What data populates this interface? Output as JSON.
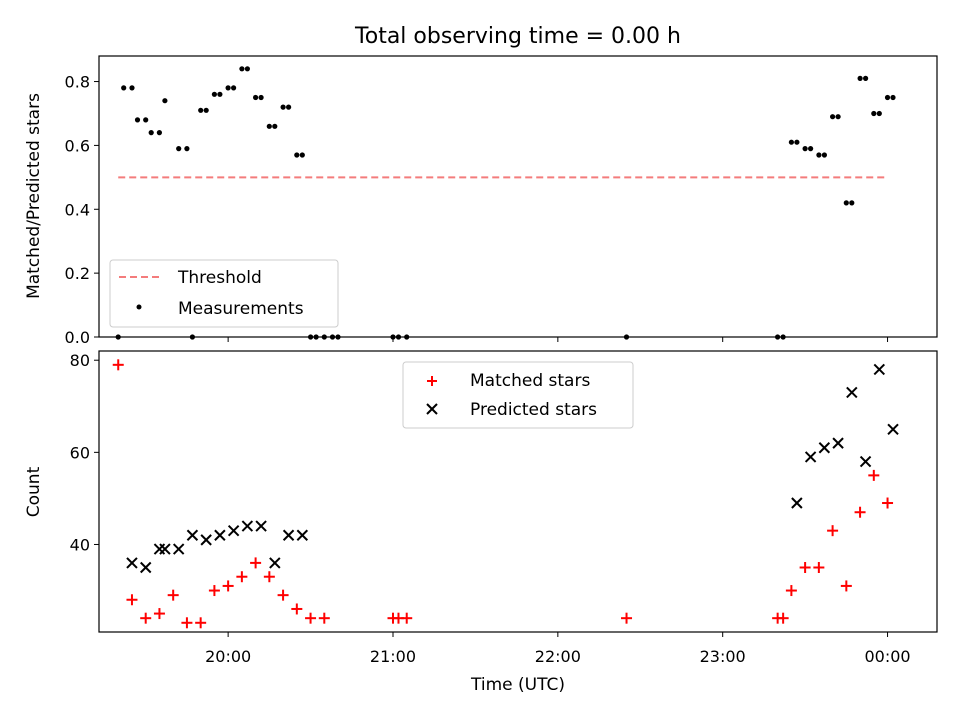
{
  "chart_data": [
    {
      "type": "scatter",
      "title": "Total observing time = 0.00 h",
      "xlabel": "",
      "ylabel": "Matched/Predicted stars",
      "xlim": [
        "19:13",
        "00:18"
      ],
      "ylim": [
        0,
        0.88
      ],
      "yticks": [
        0.0,
        0.2,
        0.4,
        0.6,
        0.8
      ],
      "ytick_labels": [
        "0.0",
        "0.2",
        "0.4",
        "0.6",
        "0.8"
      ],
      "grid": false,
      "legend": "lower-left",
      "threshold": {
        "name": "Threshold",
        "color": "#f47c7c",
        "style": "dashed",
        "y": 0.5,
        "x_start": "19:20",
        "x_end": "00:00"
      },
      "series": [
        {
          "name": "Measurements",
          "marker": "dot",
          "color": "#000000",
          "x": [
            "19:20",
            "19:22",
            "19:25",
            "19:27",
            "19:30",
            "19:32",
            "19:35",
            "19:37",
            "19:42",
            "19:45",
            "19:47",
            "19:50",
            "19:52",
            "19:55",
            "19:57",
            "20:00",
            "20:02",
            "20:05",
            "20:07",
            "20:10",
            "20:12",
            "20:15",
            "20:17",
            "20:20",
            "20:22",
            "20:25",
            "20:27",
            "20:30",
            "20:32",
            "20:35",
            "20:38",
            "20:40",
            "21:00",
            "21:02",
            "21:05",
            "22:25",
            "23:20",
            "23:22",
            "23:25",
            "23:27",
            "23:30",
            "23:32",
            "23:35",
            "23:37",
            "23:40",
            "23:42",
            "23:45",
            "23:47",
            "23:50",
            "23:52",
            "23:55",
            "23:57",
            "00:00",
            "00:02"
          ],
          "y": [
            0,
            0.78,
            0.78,
            0.68,
            0.68,
            0.64,
            0.64,
            0.74,
            0.59,
            0.59,
            0,
            0.71,
            0.71,
            0.76,
            0.76,
            0.78,
            0.78,
            0.84,
            0.84,
            0.75,
            0.75,
            0.66,
            0.66,
            0.72,
            0.72,
            0.57,
            0.57,
            0,
            0,
            0,
            0,
            0,
            0,
            0,
            0,
            0,
            0,
            0,
            0.61,
            0.61,
            0.59,
            0.59,
            0.57,
            0.57,
            0.69,
            0.69,
            0.42,
            0.42,
            0.81,
            0.81,
            0.7,
            0.7,
            0.75,
            0.75
          ]
        }
      ]
    },
    {
      "type": "scatter",
      "title": "",
      "xlabel": "Time (UTC)",
      "ylabel": "Count",
      "xlim": [
        "19:13",
        "00:18"
      ],
      "ylim": [
        21,
        82
      ],
      "xticks": [
        "20:00",
        "21:00",
        "22:00",
        "23:00",
        "00:00"
      ],
      "yticks": [
        40,
        60,
        80
      ],
      "ytick_labels": [
        "40",
        "60",
        "80"
      ],
      "grid": false,
      "legend": "upper-center",
      "series": [
        {
          "name": "Matched stars",
          "marker": "plus",
          "color": "#ff0000",
          "x": [
            "19:20",
            "19:25",
            "19:30",
            "19:35",
            "19:40",
            "19:45",
            "19:50",
            "19:55",
            "20:00",
            "20:05",
            "20:10",
            "20:15",
            "20:20",
            "20:25",
            "20:30",
            "20:35",
            "21:00",
            "21:02",
            "21:05",
            "22:25",
            "23:20",
            "23:22",
            "23:25",
            "23:30",
            "23:35",
            "23:40",
            "23:45",
            "23:50",
            "23:55",
            "00:00"
          ],
          "y": [
            79,
            28,
            24,
            25,
            29,
            23,
            23,
            30,
            31,
            33,
            36,
            33,
            29,
            26,
            24,
            24,
            24,
            24,
            24,
            24,
            24,
            24,
            30,
            35,
            35,
            43,
            31,
            47,
            55,
            49
          ]
        },
        {
          "name": "Predicted stars",
          "marker": "x",
          "color": "#000000",
          "x": [
            "19:25",
            "19:30",
            "19:35",
            "19:37",
            "19:42",
            "19:47",
            "19:52",
            "19:57",
            "20:02",
            "20:07",
            "20:12",
            "20:17",
            "20:22",
            "20:27",
            "23:27",
            "23:32",
            "23:37",
            "23:42",
            "23:47",
            "23:52",
            "23:57",
            "00:02"
          ],
          "y": [
            36,
            35,
            39,
            39,
            39,
            42,
            41,
            42,
            43,
            44,
            44,
            36,
            42,
            42,
            49,
            59,
            61,
            62,
            73,
            58,
            78,
            65
          ]
        }
      ]
    }
  ]
}
